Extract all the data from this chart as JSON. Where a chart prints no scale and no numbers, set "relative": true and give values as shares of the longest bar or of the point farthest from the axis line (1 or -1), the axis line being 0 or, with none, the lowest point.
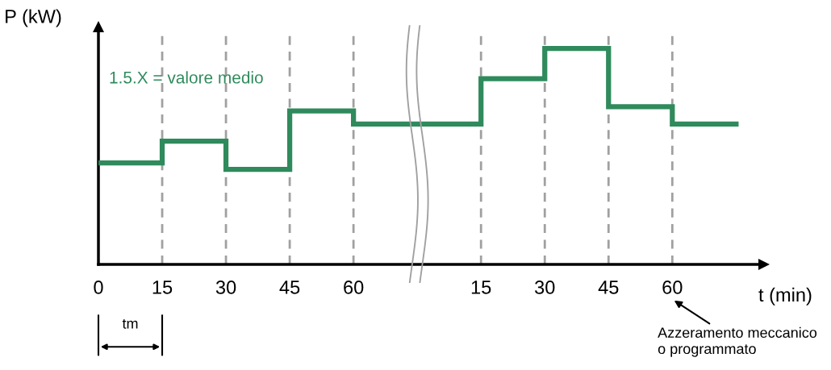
{
  "chart_data": {
    "type": "step",
    "relative": true,
    "xlabel": "t (min)",
    "ylabel": "P (kW)",
    "categories": [
      "0",
      "15",
      "30",
      "45",
      "60",
      null,
      "15",
      "30",
      "45",
      "60",
      null
    ],
    "series": [
      {
        "color": "#2f8a5c",
        "values": [
          0.47,
          0.57,
          0.44,
          0.71,
          0.65,
          0.65,
          0.86,
          1,
          0.73,
          0.65,
          0.65
        ]
      }
    ],
    "grid": "x",
    "tick_labels": "x",
    "annotations": [
      "1.5.X = valore medio",
      "tm",
      "Azzeramento meccanico\no programmato"
    ]
  }
}
